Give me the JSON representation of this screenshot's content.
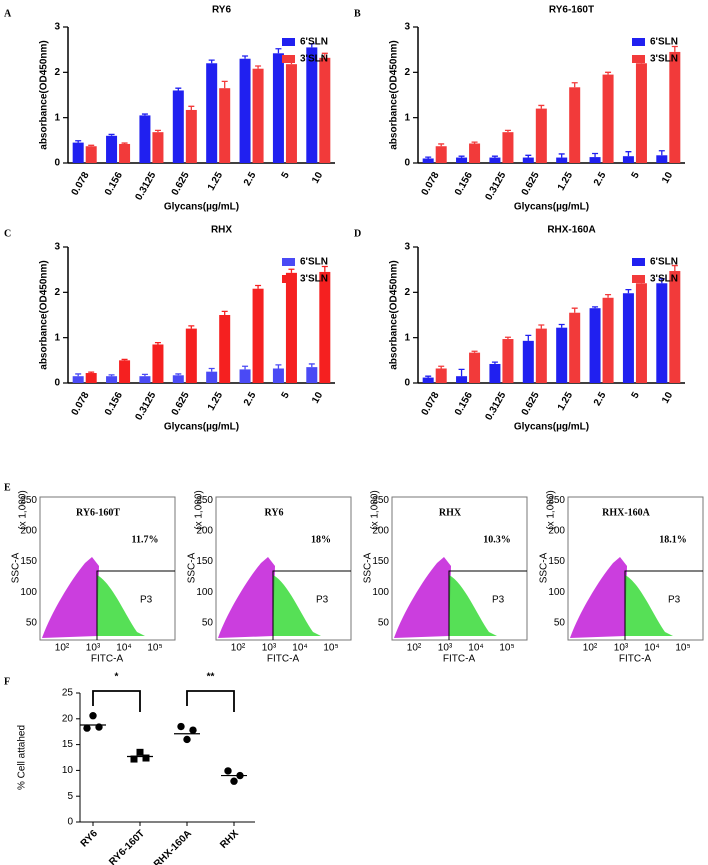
{
  "chart_data": [
    {
      "type": "bar",
      "label": "A",
      "title": "RY6",
      "ylabel": "absorbance(OD450nm)",
      "xlabel": "Glycans(µg/mL)",
      "categories": [
        "0.078",
        "0.156",
        "0.3125",
        "0.625",
        "1.25",
        "2.5",
        "5",
        "10"
      ],
      "series": [
        {
          "name": "6'SLN",
          "color": "#2020f0",
          "values": [
            0.45,
            0.6,
            1.05,
            1.6,
            2.2,
            2.3,
            2.42,
            2.55
          ],
          "errors": [
            0.04,
            0.03,
            0.03,
            0.05,
            0.07,
            0.06,
            0.1,
            0.08
          ]
        },
        {
          "name": "3'SLN",
          "color": "#f23a3a",
          "values": [
            0.37,
            0.42,
            0.68,
            1.17,
            1.65,
            2.08,
            2.18,
            2.32
          ],
          "errors": [
            0.02,
            0.02,
            0.04,
            0.08,
            0.15,
            0.06,
            0.08,
            0.1
          ]
        }
      ],
      "ylim": [
        0,
        3
      ],
      "yticks": [
        0,
        1,
        2,
        3
      ]
    },
    {
      "type": "bar",
      "label": "B",
      "title": "RY6-160T",
      "ylabel": "absorbance(OD450nm)",
      "xlabel": "Glycans(µg/mL)",
      "categories": [
        "0.078",
        "0.156",
        "0.3125",
        "0.625",
        "1.25",
        "2.5",
        "5",
        "10"
      ],
      "series": [
        {
          "name": "6'SLN",
          "color": "#2020f0",
          "values": [
            0.1,
            0.12,
            0.12,
            0.12,
            0.12,
            0.13,
            0.15,
            0.17
          ],
          "errors": [
            0.03,
            0.03,
            0.03,
            0.05,
            0.08,
            0.08,
            0.1,
            0.1
          ]
        },
        {
          "name": "3'SLN",
          "color": "#f23a3a",
          "values": [
            0.37,
            0.43,
            0.68,
            1.2,
            1.67,
            1.95,
            2.2,
            2.45
          ],
          "errors": [
            0.05,
            0.03,
            0.04,
            0.07,
            0.1,
            0.05,
            0.06,
            0.12
          ]
        }
      ],
      "ylim": [
        0,
        3
      ],
      "yticks": [
        0,
        1,
        2,
        3
      ]
    },
    {
      "type": "bar",
      "label": "C",
      "title": "RHX",
      "ylabel": "absorbance(OD450nm)",
      "xlabel": "Glycans(µg/mL)",
      "categories": [
        "0.078",
        "0.156",
        "0.3125",
        "0.625",
        "1.25",
        "2.5",
        "5",
        "10"
      ],
      "series": [
        {
          "name": "6'SLN",
          "color": "#4a4af5",
          "values": [
            0.15,
            0.15,
            0.15,
            0.17,
            0.25,
            0.3,
            0.32,
            0.35
          ],
          "errors": [
            0.05,
            0.03,
            0.04,
            0.03,
            0.07,
            0.07,
            0.08,
            0.07
          ]
        },
        {
          "name": "3'SLN",
          "color": "#f52020",
          "values": [
            0.22,
            0.5,
            0.85,
            1.2,
            1.5,
            2.08,
            2.43,
            2.45
          ],
          "errors": [
            0.02,
            0.02,
            0.04,
            0.06,
            0.08,
            0.07,
            0.08,
            0.12
          ]
        }
      ],
      "ylim": [
        0,
        3
      ],
      "yticks": [
        0,
        1,
        2,
        3
      ]
    },
    {
      "type": "bar",
      "label": "D",
      "title": "RHX-160A",
      "ylabel": "absorbance(OD450nm)",
      "xlabel": "Glycans(µg/mL)",
      "categories": [
        "0.078",
        "0.156",
        "0.3125",
        "0.625",
        "1.25",
        "2.5",
        "5",
        "10"
      ],
      "series": [
        {
          "name": "6'SLN",
          "color": "#2020f0",
          "values": [
            0.12,
            0.15,
            0.42,
            0.93,
            1.22,
            1.65,
            1.98,
            2.2
          ],
          "errors": [
            0.03,
            0.15,
            0.04,
            0.12,
            0.07,
            0.03,
            0.08,
            0.1
          ]
        },
        {
          "name": "3'SLN",
          "color": "#f23a3a",
          "values": [
            0.32,
            0.67,
            0.97,
            1.2,
            1.55,
            1.88,
            2.2,
            2.47
          ],
          "errors": [
            0.05,
            0.03,
            0.04,
            0.08,
            0.1,
            0.07,
            0.05,
            0.12
          ]
        }
      ],
      "ylim": [
        0,
        3
      ],
      "yticks": [
        0,
        1,
        2,
        3
      ]
    },
    {
      "type": "dot",
      "label": "F",
      "ylabel": "% Cell attahed",
      "categories": [
        "RY6",
        "RY6-160T",
        "RHX-160A",
        "RHX"
      ],
      "points": [
        [
          18.2,
          20.6,
          18.4
        ],
        [
          12.2,
          13.5,
          12.4
        ],
        [
          18.5,
          16.0,
          17.8
        ],
        [
          9.9,
          7.9,
          9.0
        ]
      ],
      "means": [
        18.8,
        12.7,
        17.1,
        9.0
      ],
      "marker": [
        "circle",
        "square",
        "circle",
        "circle"
      ],
      "significance": [
        "*",
        "**"
      ],
      "ylim": [
        0,
        25
      ],
      "yticks": [
        0,
        5,
        10,
        15,
        20,
        25
      ]
    }
  ],
  "flow": {
    "label": "E",
    "y_axis_label": "SSC-A",
    "y_unit": "(x 1,000)",
    "x_axis_label": "FITC-A",
    "gate": "P3",
    "yticks": [
      "50",
      "100",
      "150",
      "200",
      "250"
    ],
    "xticks": [
      "10²",
      "10³",
      "10⁴",
      "10⁵"
    ],
    "panels": [
      {
        "title": "RY6-160T",
        "percent": "11.7%"
      },
      {
        "title": "RY6",
        "percent": "18%"
      },
      {
        "title": "RHX",
        "percent": "10.3%"
      },
      {
        "title": "RHX-160A",
        "percent": "18.1%"
      }
    ]
  }
}
